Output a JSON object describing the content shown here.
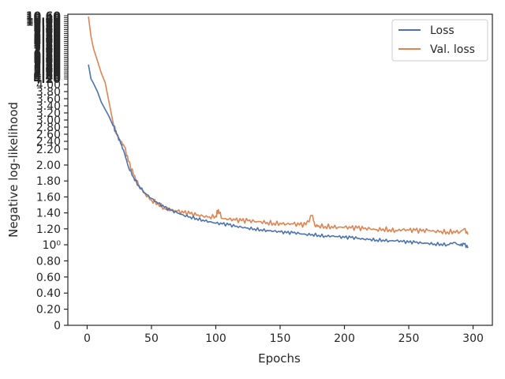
{
  "chart_data": {
    "type": "line",
    "title": "",
    "xlabel": "Epochs",
    "ylabel": "Negative log-likelihood",
    "xlim": [
      -15,
      315
    ],
    "xticks": [
      0,
      50,
      100,
      150,
      200,
      250,
      300
    ],
    "ylim_note": "y axis is log-scaled above 1 with overlapping tick labels; values given in printed units",
    "yticks_lower": [
      {
        "value": 0,
        "label": "0"
      },
      {
        "value": 0.2,
        "label": "0.20"
      },
      {
        "value": 0.4,
        "label": "0.40"
      },
      {
        "value": 0.6,
        "label": "0.60"
      },
      {
        "value": 0.8,
        "label": "0.80"
      },
      {
        "value": 1.0,
        "label": "10⁰"
      },
      {
        "value": 1.2,
        "label": "1.20"
      },
      {
        "value": 1.4,
        "label": "1.40"
      },
      {
        "value": 1.6,
        "label": "1.60"
      },
      {
        "value": 1.8,
        "label": "1.80"
      },
      {
        "value": 2.0,
        "label": "2.00"
      },
      {
        "value": 2.2,
        "label": "2.20"
      },
      {
        "value": 2.4,
        "label": "2.40"
      },
      {
        "value": 2.6,
        "label": "2.60"
      },
      {
        "value": 2.8,
        "label": "2.80"
      },
      {
        "value": 3.0,
        "label": "3.00"
      },
      {
        "value": 3.2,
        "label": "3.20"
      },
      {
        "value": 3.4,
        "label": "3.40"
      },
      {
        "value": 3.6,
        "label": "3.60"
      },
      {
        "value": 3.8,
        "label": "3.80"
      },
      {
        "value": 4.0,
        "label": "4.00"
      }
    ],
    "legend_position": "top-right",
    "grid": false,
    "series": [
      {
        "name": "Loss",
        "color": "#4c72b0",
        "points": [
          [
            1,
            6.1
          ],
          [
            3,
            4.6
          ],
          [
            5,
            4.1
          ],
          [
            8,
            3.8
          ],
          [
            11,
            3.5
          ],
          [
            14,
            3.3
          ],
          [
            17,
            3.1
          ],
          [
            20,
            2.85
          ],
          [
            23,
            2.6
          ],
          [
            26,
            2.35
          ],
          [
            29,
            2.15
          ],
          [
            32,
            1.98
          ],
          [
            36,
            1.85
          ],
          [
            40,
            1.74
          ],
          [
            45,
            1.65
          ],
          [
            50,
            1.58
          ],
          [
            55,
            1.52
          ],
          [
            60,
            1.47
          ],
          [
            65,
            1.43
          ],
          [
            70,
            1.4
          ],
          [
            75,
            1.37
          ],
          [
            80,
            1.35
          ],
          [
            85,
            1.33
          ],
          [
            90,
            1.31
          ],
          [
            95,
            1.29
          ],
          [
            100,
            1.27
          ],
          [
            105,
            1.26
          ],
          [
            110,
            1.25
          ],
          [
            115,
            1.23
          ],
          [
            120,
            1.22
          ],
          [
            125,
            1.21
          ],
          [
            130,
            1.2
          ],
          [
            135,
            1.19
          ],
          [
            140,
            1.18
          ],
          [
            145,
            1.17
          ],
          [
            150,
            1.16
          ],
          [
            155,
            1.15
          ],
          [
            160,
            1.15
          ],
          [
            165,
            1.14
          ],
          [
            170,
            1.13
          ],
          [
            175,
            1.13
          ],
          [
            180,
            1.12
          ],
          [
            185,
            1.11
          ],
          [
            190,
            1.11
          ],
          [
            195,
            1.1
          ],
          [
            200,
            1.09
          ],
          [
            205,
            1.09
          ],
          [
            210,
            1.08
          ],
          [
            215,
            1.07
          ],
          [
            220,
            1.07
          ],
          [
            225,
            1.06
          ],
          [
            230,
            1.06
          ],
          [
            235,
            1.05
          ],
          [
            240,
            1.05
          ],
          [
            245,
            1.04
          ],
          [
            250,
            1.03
          ],
          [
            255,
            1.03
          ],
          [
            260,
            1.02
          ],
          [
            265,
            1.02
          ],
          [
            270,
            1.01
          ],
          [
            275,
            1.01
          ],
          [
            280,
            1.0
          ],
          [
            285,
            1.03
          ],
          [
            290,
            0.99
          ],
          [
            293,
            1.01
          ],
          [
            296,
            0.96
          ]
        ]
      },
      {
        "name": "Val. loss",
        "color": "#dd8452",
        "points": [
          [
            1,
            28
          ],
          [
            3,
            14
          ],
          [
            5,
            9
          ],
          [
            8,
            6.5
          ],
          [
            11,
            5.2
          ],
          [
            14,
            4.2
          ],
          [
            17,
            3.5
          ],
          [
            20,
            2.95
          ],
          [
            23,
            2.6
          ],
          [
            26,
            2.4
          ],
          [
            29,
            2.25
          ],
          [
            32,
            2.05
          ],
          [
            36,
            1.88
          ],
          [
            40,
            1.75
          ],
          [
            45,
            1.64
          ],
          [
            50,
            1.56
          ],
          [
            55,
            1.52
          ],
          [
            60,
            1.46
          ],
          [
            65,
            1.44
          ],
          [
            70,
            1.42
          ],
          [
            75,
            1.4
          ],
          [
            80,
            1.39
          ],
          [
            85,
            1.37
          ],
          [
            90,
            1.36
          ],
          [
            95,
            1.35
          ],
          [
            100,
            1.36
          ],
          [
            102,
            1.44
          ],
          [
            105,
            1.33
          ],
          [
            110,
            1.32
          ],
          [
            115,
            1.31
          ],
          [
            120,
            1.3
          ],
          [
            125,
            1.3
          ],
          [
            130,
            1.29
          ],
          [
            135,
            1.29
          ],
          [
            140,
            1.28
          ],
          [
            145,
            1.27
          ],
          [
            150,
            1.27
          ],
          [
            155,
            1.26
          ],
          [
            160,
            1.26
          ],
          [
            165,
            1.25
          ],
          [
            170,
            1.25
          ],
          [
            175,
            1.37
          ],
          [
            177,
            1.24
          ],
          [
            180,
            1.24
          ],
          [
            185,
            1.23
          ],
          [
            190,
            1.23
          ],
          [
            195,
            1.22
          ],
          [
            200,
            1.22
          ],
          [
            205,
            1.21
          ],
          [
            210,
            1.21
          ],
          [
            215,
            1.2
          ],
          [
            220,
            1.2
          ],
          [
            225,
            1.19
          ],
          [
            230,
            1.2
          ],
          [
            235,
            1.19
          ],
          [
            240,
            1.18
          ],
          [
            245,
            1.19
          ],
          [
            250,
            1.18
          ],
          [
            255,
            1.18
          ],
          [
            260,
            1.17
          ],
          [
            265,
            1.18
          ],
          [
            270,
            1.17
          ],
          [
            275,
            1.17
          ],
          [
            280,
            1.16
          ],
          [
            285,
            1.17
          ],
          [
            290,
            1.16
          ],
          [
            293,
            1.2
          ],
          [
            296,
            1.13
          ]
        ]
      }
    ]
  }
}
